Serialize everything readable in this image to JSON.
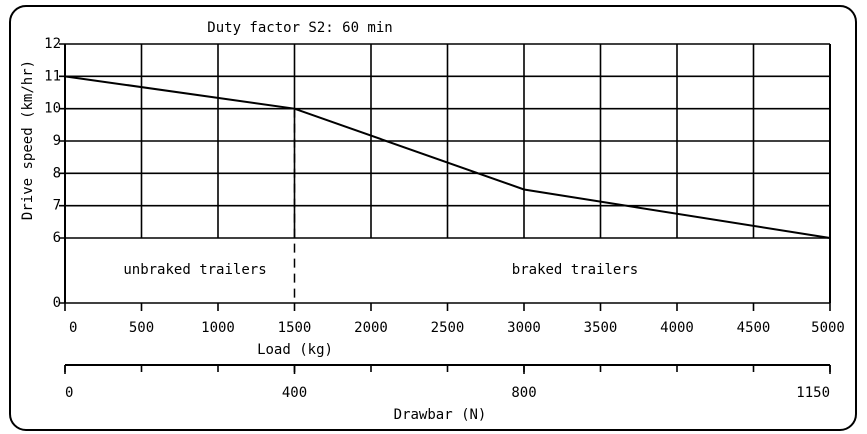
{
  "chart_data": {
    "type": "line",
    "title": "Duty factor S2: 60 min",
    "ylabel": "Drive speed (km/hr)",
    "xlabel": "Load (kg)",
    "x2label": "Drawbar (N)",
    "x": [
      0,
      1500,
      3000,
      5000
    ],
    "series": [
      {
        "color": "#000000",
        "values": [
          11,
          10,
          7.5,
          6
        ]
      }
    ],
    "xlim": [
      0,
      5000
    ],
    "xticks": [
      0,
      500,
      1000,
      1500,
      2000,
      2500,
      3000,
      3500,
      4000,
      4500,
      5000
    ],
    "ylim": [
      0,
      12
    ],
    "y_break": [
      0,
      6
    ],
    "yticks": [
      0,
      6,
      7,
      8,
      9,
      10,
      11,
      12
    ],
    "x2ticks": [
      0,
      400,
      800,
      1150
    ],
    "x2ticks_at_load": [
      0,
      1500,
      3000,
      5000
    ],
    "grid": true,
    "divider_x": 1500,
    "annotations": [
      "unbraked trailers",
      "braked trailers"
    ]
  }
}
